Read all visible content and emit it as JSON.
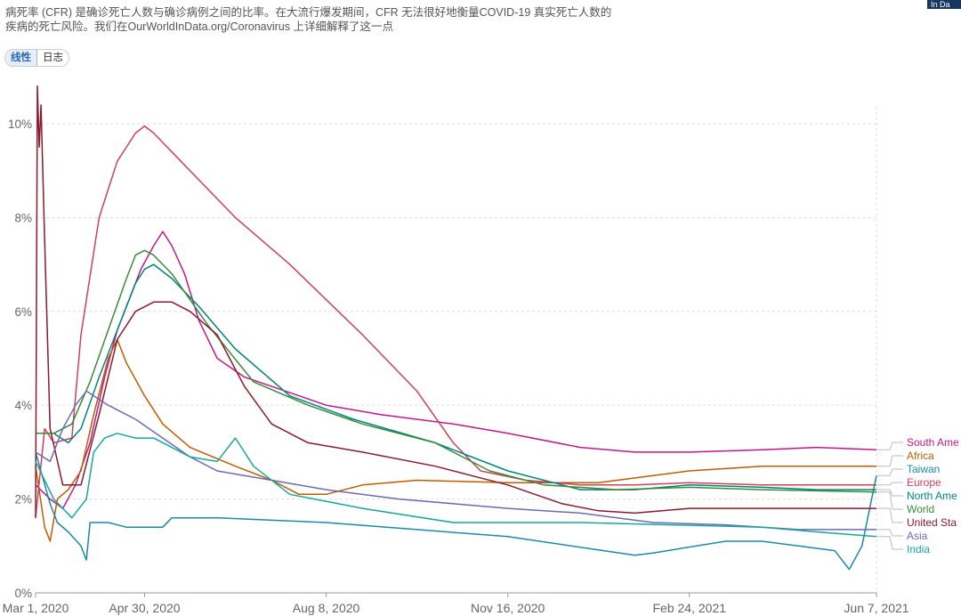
{
  "subtitle_lines": [
    "病死率 (CFR) 是确诊死亡人数与确诊病例之间的比率。在大流行爆发期间，CFR 无法很好地衡量COVID-19 真实死亡人数的",
    "疾病的死亡风险。我们在OurWorldInData.org/Coronavirus 上详细解释了这一点"
  ],
  "toggle": {
    "linear": "线性",
    "log": "日志"
  },
  "badge": "In Da",
  "chart_data": {
    "type": "line",
    "xlabel": "",
    "ylabel": "",
    "x_ticks": [
      "Mar 1, 2020",
      "Apr 30, 2020",
      "Aug 8, 2020",
      "Nov 16, 2020",
      "Feb 24, 2021",
      "Jun 7, 2021"
    ],
    "x_tick_days": [
      0,
      60,
      160,
      260,
      360,
      463
    ],
    "xlim": [
      0,
      463
    ],
    "y_ticks": [
      "0%",
      "2%",
      "4%",
      "6%",
      "8%",
      "10%"
    ],
    "y_tick_values": [
      0,
      2,
      4,
      6,
      8,
      10
    ],
    "ylim": [
      0,
      11
    ],
    "grid": "horizontal dashed",
    "legend_placement": "right end labels",
    "series": [
      {
        "name": "South America",
        "label": "South Ame",
        "color": "#c2188b",
        "points": [
          [
            0,
            2.3
          ],
          [
            8,
            2.0
          ],
          [
            15,
            1.8
          ],
          [
            22,
            2.3
          ],
          [
            30,
            3.2
          ],
          [
            38,
            4.6
          ],
          [
            45,
            5.6
          ],
          [
            52,
            6.3
          ],
          [
            58,
            6.9
          ],
          [
            65,
            7.4
          ],
          [
            70,
            7.7
          ],
          [
            75,
            7.4
          ],
          [
            82,
            6.8
          ],
          [
            90,
            5.8
          ],
          [
            100,
            5.0
          ],
          [
            115,
            4.6
          ],
          [
            130,
            4.4
          ],
          [
            160,
            4.0
          ],
          [
            190,
            3.8
          ],
          [
            230,
            3.6
          ],
          [
            260,
            3.4
          ],
          [
            300,
            3.1
          ],
          [
            330,
            3.0
          ],
          [
            360,
            3.0
          ],
          [
            400,
            3.05
          ],
          [
            430,
            3.1
          ],
          [
            463,
            3.05
          ]
        ]
      },
      {
        "name": "Africa",
        "label": "Africa",
        "color": "#c15c00",
        "points": [
          [
            0,
            2.7
          ],
          [
            5,
            1.4
          ],
          [
            8,
            1.1
          ],
          [
            12,
            2.0
          ],
          [
            18,
            2.2
          ],
          [
            25,
            2.6
          ],
          [
            32,
            3.8
          ],
          [
            40,
            5.0
          ],
          [
            45,
            5.4
          ],
          [
            50,
            4.9
          ],
          [
            60,
            4.2
          ],
          [
            70,
            3.6
          ],
          [
            85,
            3.1
          ],
          [
            110,
            2.7
          ],
          [
            130,
            2.4
          ],
          [
            145,
            2.1
          ],
          [
            160,
            2.1
          ],
          [
            180,
            2.3
          ],
          [
            210,
            2.4
          ],
          [
            260,
            2.35
          ],
          [
            310,
            2.35
          ],
          [
            340,
            2.5
          ],
          [
            360,
            2.6
          ],
          [
            400,
            2.7
          ],
          [
            463,
            2.7
          ]
        ]
      },
      {
        "name": "Taiwan",
        "label": "Taiwan",
        "color": "#1a8aa8",
        "points": [
          [
            0,
            3.0
          ],
          [
            8,
            1.9
          ],
          [
            12,
            1.5
          ],
          [
            18,
            1.3
          ],
          [
            25,
            1.0
          ],
          [
            28,
            0.7
          ],
          [
            30,
            1.5
          ],
          [
            40,
            1.5
          ],
          [
            50,
            1.4
          ],
          [
            60,
            1.4
          ],
          [
            70,
            1.4
          ],
          [
            75,
            1.6
          ],
          [
            100,
            1.6
          ],
          [
            160,
            1.5
          ],
          [
            260,
            1.2
          ],
          [
            330,
            0.8
          ],
          [
            340,
            0.85
          ],
          [
            380,
            1.1
          ],
          [
            400,
            1.1
          ],
          [
            420,
            1.0
          ],
          [
            440,
            0.9
          ],
          [
            448,
            0.5
          ],
          [
            455,
            1.0
          ],
          [
            463,
            2.5
          ]
        ]
      },
      {
        "name": "Europe",
        "label": "Europe",
        "color": "#d0405b",
        "points": [
          [
            0,
            1.6
          ],
          [
            5,
            3.5
          ],
          [
            10,
            3.2
          ],
          [
            20,
            3.3
          ],
          [
            25,
            5.5
          ],
          [
            35,
            8.0
          ],
          [
            45,
            9.2
          ],
          [
            55,
            9.8
          ],
          [
            60,
            9.95
          ],
          [
            65,
            9.8
          ],
          [
            80,
            9.2
          ],
          [
            110,
            8.0
          ],
          [
            140,
            7.0
          ],
          [
            180,
            5.5
          ],
          [
            210,
            4.3
          ],
          [
            230,
            3.2
          ],
          [
            245,
            2.6
          ],
          [
            270,
            2.4
          ],
          [
            300,
            2.3
          ],
          [
            330,
            2.3
          ],
          [
            360,
            2.35
          ],
          [
            400,
            2.3
          ],
          [
            463,
            2.3
          ]
        ]
      },
      {
        "name": "North America",
        "label": "North Ame",
        "color": "#00847e",
        "points": [
          [
            0,
            3.4
          ],
          [
            5,
            3.4
          ],
          [
            10,
            3.4
          ],
          [
            18,
            3.2
          ],
          [
            25,
            3.5
          ],
          [
            35,
            4.6
          ],
          [
            45,
            5.6
          ],
          [
            55,
            6.6
          ],
          [
            60,
            6.9
          ],
          [
            65,
            7.0
          ],
          [
            75,
            6.7
          ],
          [
            90,
            6.1
          ],
          [
            110,
            5.2
          ],
          [
            140,
            4.2
          ],
          [
            175,
            3.7
          ],
          [
            220,
            3.2
          ],
          [
            260,
            2.6
          ],
          [
            300,
            2.2
          ],
          [
            330,
            2.2
          ],
          [
            360,
            2.3
          ],
          [
            400,
            2.25
          ],
          [
            430,
            2.2
          ],
          [
            463,
            2.2
          ]
        ]
      },
      {
        "name": "World",
        "label": "World",
        "color": "#3a8a3a",
        "points": [
          [
            0,
            3.4
          ],
          [
            10,
            3.4
          ],
          [
            20,
            3.6
          ],
          [
            30,
            4.5
          ],
          [
            40,
            5.6
          ],
          [
            50,
            6.7
          ],
          [
            55,
            7.2
          ],
          [
            60,
            7.3
          ],
          [
            65,
            7.2
          ],
          [
            75,
            6.8
          ],
          [
            95,
            5.7
          ],
          [
            120,
            4.5
          ],
          [
            150,
            4.0
          ],
          [
            180,
            3.6
          ],
          [
            220,
            3.2
          ],
          [
            250,
            2.6
          ],
          [
            280,
            2.3
          ],
          [
            320,
            2.2
          ],
          [
            360,
            2.25
          ],
          [
            400,
            2.2
          ],
          [
            463,
            2.15
          ]
        ]
      },
      {
        "name": "United States",
        "label": "United Sta",
        "color": "#8b1a2c",
        "points": [
          [
            0,
            1.6
          ],
          [
            1,
            10.8
          ],
          [
            2,
            9.5
          ],
          [
            3,
            10.4
          ],
          [
            5,
            7.5
          ],
          [
            8,
            3.5
          ],
          [
            15,
            2.3
          ],
          [
            25,
            2.3
          ],
          [
            35,
            3.8
          ],
          [
            45,
            5.4
          ],
          [
            55,
            6.0
          ],
          [
            65,
            6.2
          ],
          [
            75,
            6.2
          ],
          [
            85,
            6.0
          ],
          [
            100,
            5.5
          ],
          [
            115,
            4.4
          ],
          [
            130,
            3.6
          ],
          [
            150,
            3.2
          ],
          [
            180,
            3.0
          ],
          [
            220,
            2.7
          ],
          [
            260,
            2.3
          ],
          [
            290,
            1.9
          ],
          [
            310,
            1.75
          ],
          [
            330,
            1.7
          ],
          [
            360,
            1.8
          ],
          [
            400,
            1.8
          ],
          [
            463,
            1.8
          ]
        ]
      },
      {
        "name": "Asia",
        "label": "Asia",
        "color": "#6b6bb2",
        "points": [
          [
            0,
            3.0
          ],
          [
            8,
            2.8
          ],
          [
            15,
            3.5
          ],
          [
            22,
            4.0
          ],
          [
            28,
            4.3
          ],
          [
            40,
            4.0
          ],
          [
            55,
            3.7
          ],
          [
            70,
            3.3
          ],
          [
            85,
            2.9
          ],
          [
            100,
            2.6
          ],
          [
            130,
            2.4
          ],
          [
            160,
            2.2
          ],
          [
            200,
            2.0
          ],
          [
            260,
            1.8
          ],
          [
            300,
            1.7
          ],
          [
            340,
            1.5
          ],
          [
            380,
            1.45
          ],
          [
            420,
            1.35
          ],
          [
            463,
            1.35
          ]
        ]
      },
      {
        "name": "India",
        "label": "India",
        "color": "#18a899",
        "points": [
          [
            0,
            2.8
          ],
          [
            10,
            2.0
          ],
          [
            20,
            1.6
          ],
          [
            28,
            2.0
          ],
          [
            32,
            3.0
          ],
          [
            38,
            3.3
          ],
          [
            45,
            3.4
          ],
          [
            55,
            3.3
          ],
          [
            65,
            3.3
          ],
          [
            75,
            3.1
          ],
          [
            85,
            2.9
          ],
          [
            100,
            2.8
          ],
          [
            110,
            3.3
          ],
          [
            120,
            2.7
          ],
          [
            140,
            2.1
          ],
          [
            180,
            1.8
          ],
          [
            230,
            1.5
          ],
          [
            300,
            1.5
          ],
          [
            350,
            1.45
          ],
          [
            400,
            1.4
          ],
          [
            430,
            1.3
          ],
          [
            463,
            1.2
          ]
        ]
      }
    ]
  }
}
